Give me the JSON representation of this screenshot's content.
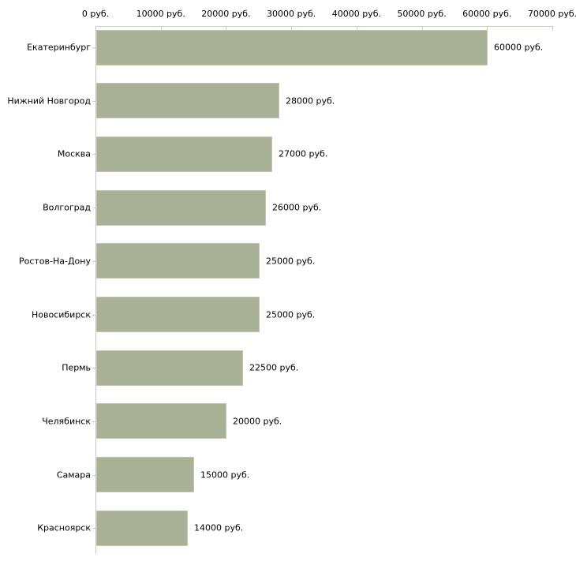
{
  "chart_data": {
    "type": "bar",
    "orientation": "horizontal",
    "title": "",
    "xlabel": "",
    "ylabel": "",
    "xlim": [
      0,
      70000
    ],
    "grid": "off",
    "legend": "none",
    "categories": [
      "Екатеринбург",
      "Нижний Новгород",
      "Москва",
      "Волгоград",
      "Ростов-На-Дону",
      "Новосибирск",
      "Пермь",
      "Челябинск",
      "Самара",
      "Красноярск"
    ],
    "values": [
      60000,
      28000,
      27000,
      26000,
      25000,
      25000,
      22500,
      20000,
      15000,
      14000
    ],
    "value_labels": [
      "60000 руб.",
      "28000 руб.",
      "27000 руб.",
      "26000 руб.",
      "25000 руб.",
      "25000 руб.",
      "22500 руб.",
      "20000 руб.",
      "15000 руб.",
      "14000 руб."
    ],
    "x_tick_values": [
      0,
      10000,
      20000,
      30000,
      40000,
      50000,
      60000,
      70000
    ],
    "x_tick_labels": [
      "0 руб.",
      "10000 руб.",
      "20000 руб.",
      "30000 руб.",
      "40000 руб.",
      "50000 руб.",
      "60000 руб.",
      "70000 руб."
    ],
    "colors": {
      "bar_fill": "#a9b297",
      "bar_border": "#c1c7b0",
      "x_axis": "#d2cfba",
      "y_axis": "#c9c9c9",
      "category_tick": "#d2cfba",
      "text": "#000000",
      "background": "#ffffff"
    }
  }
}
